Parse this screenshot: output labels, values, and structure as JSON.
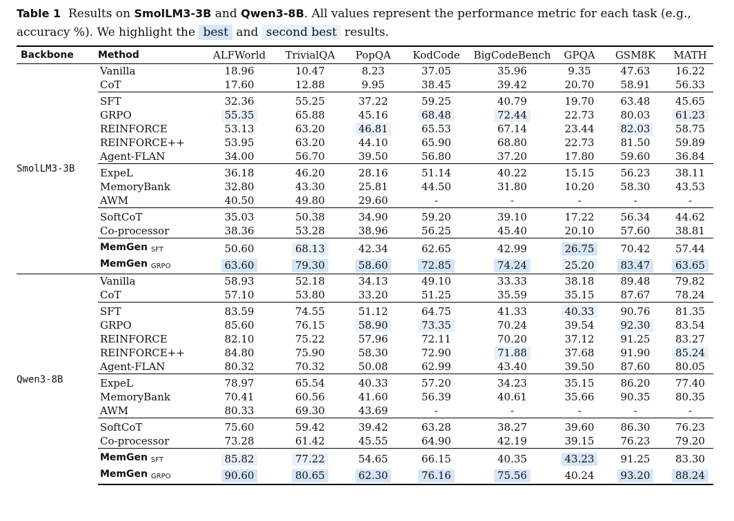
{
  "caption": {
    "label": "Table 1",
    "text_a": "Results on",
    "model_a": "SmolLM3-3B",
    "text_b": "and",
    "model_b": "Qwen3-8B",
    "text_c": ". All values represent the performance metric for each task (e.g., accuracy %). We highlight the",
    "best": "best",
    "text_d": "and",
    "second_best": "second best",
    "text_e": "results."
  },
  "colors": {
    "best": "#d6e6f8",
    "second_best": "#e9f1fb"
  },
  "header": [
    "Backbone",
    "Method",
    "ALFWorld",
    "TrivialQA",
    "PopQA",
    "KodCode",
    "BigCodeBench",
    "GPQA",
    "GSM8K",
    "MATH"
  ],
  "blocks": [
    {
      "backbone": "SmolLM3-3B",
      "groups": [
        {
          "rows": [
            {
              "method": "Vanilla",
              "values": [
                "18.96",
                "10.47",
                "8.23",
                "37.05",
                "35.96",
                "9.35",
                "47.63",
                "16.22"
              ],
              "hl": [
                0,
                0,
                0,
                0,
                0,
                0,
                0,
                0
              ]
            },
            {
              "method": "CoT",
              "values": [
                "17.60",
                "12.88",
                "9.95",
                "38.45",
                "39.42",
                "20.70",
                "58.91",
                "56.33"
              ],
              "hl": [
                0,
                0,
                0,
                0,
                0,
                0,
                0,
                0
              ]
            }
          ]
        },
        {
          "rows": [
            {
              "method": "SFT",
              "values": [
                "32.36",
                "55.25",
                "37.22",
                "59.25",
                "40.79",
                "19.70",
                "63.48",
                "45.65"
              ],
              "hl": [
                0,
                0,
                0,
                0,
                0,
                0,
                0,
                0
              ]
            },
            {
              "method": "GRPO",
              "values": [
                "55.35",
                "65.88",
                "45.16",
                "68.48",
                "72.44",
                "22.73",
                "80.03",
                "61.23"
              ],
              "hl": [
                2,
                0,
                0,
                2,
                2,
                0,
                0,
                2
              ]
            },
            {
              "method": "REINFORCE",
              "values": [
                "53.13",
                "63.20",
                "46.81",
                "65.53",
                "67.14",
                "23.44",
                "82.03",
                "58.75"
              ],
              "hl": [
                0,
                0,
                2,
                0,
                0,
                0,
                2,
                0
              ]
            },
            {
              "method": "REINFORCE++",
              "values": [
                "53.95",
                "63.20",
                "44.10",
                "65.90",
                "68.80",
                "22.73",
                "81.50",
                "59.89"
              ],
              "hl": [
                0,
                0,
                0,
                0,
                0,
                0,
                0,
                0
              ]
            },
            {
              "method": "Agent-FLAN",
              "values": [
                "34.00",
                "56.70",
                "39.50",
                "56.80",
                "37.20",
                "17.80",
                "59.60",
                "36.84"
              ],
              "hl": [
                0,
                0,
                0,
                0,
                0,
                0,
                0,
                0
              ]
            }
          ]
        },
        {
          "rows": [
            {
              "method": "ExpeL",
              "values": [
                "36.18",
                "46.20",
                "28.16",
                "51.14",
                "40.22",
                "15.15",
                "56.23",
                "38.11"
              ],
              "hl": [
                0,
                0,
                0,
                0,
                0,
                0,
                0,
                0
              ]
            },
            {
              "method": "MemoryBank",
              "values": [
                "32.80",
                "43.30",
                "25.81",
                "44.50",
                "31.80",
                "10.20",
                "58.30",
                "43.53"
              ],
              "hl": [
                0,
                0,
                0,
                0,
                0,
                0,
                0,
                0
              ]
            },
            {
              "method": "AWM",
              "values": [
                "40.50",
                "49.80",
                "29.60",
                "-",
                "-",
                "-",
                "-",
                "-"
              ],
              "hl": [
                0,
                0,
                0,
                0,
                0,
                0,
                0,
                0
              ]
            }
          ]
        },
        {
          "rows": [
            {
              "method": "SoftCoT",
              "values": [
                "35.03",
                "50.38",
                "34.90",
                "59.20",
                "39.10",
                "17.22",
                "56.34",
                "44.62"
              ],
              "hl": [
                0,
                0,
                0,
                0,
                0,
                0,
                0,
                0
              ]
            },
            {
              "method": "Co-processor",
              "values": [
                "38.36",
                "53.28",
                "38.96",
                "56.25",
                "45.40",
                "20.10",
                "57.60",
                "38.81"
              ],
              "hl": [
                0,
                0,
                0,
                0,
                0,
                0,
                0,
                0
              ]
            }
          ]
        },
        {
          "rows": [
            {
              "method": "MemGen",
              "sub": "SFT",
              "bold": true,
              "values": [
                "50.60",
                "68.13",
                "42.34",
                "62.65",
                "42.99",
                "26.75",
                "70.42",
                "57.44"
              ],
              "hl": [
                0,
                2,
                0,
                0,
                0,
                1,
                0,
                0
              ]
            },
            {
              "method": "MemGen",
              "sub": "GRPO",
              "bold": true,
              "values": [
                "63.60",
                "79.30",
                "58.60",
                "72.85",
                "74.24",
                "25.20",
                "83.47",
                "63.65"
              ],
              "hl": [
                1,
                1,
                1,
                1,
                1,
                2,
                1,
                1
              ]
            }
          ]
        }
      ]
    },
    {
      "backbone": "Qwen3-8B",
      "groups": [
        {
          "rows": [
            {
              "method": "Vanilla",
              "values": [
                "58.93",
                "52.18",
                "34.13",
                "49.10",
                "33.33",
                "38.18",
                "89.48",
                "79.82"
              ],
              "hl": [
                0,
                0,
                0,
                0,
                0,
                0,
                0,
                0
              ]
            },
            {
              "method": "CoT",
              "values": [
                "57.10",
                "53.80",
                "33.20",
                "51.25",
                "35.59",
                "35.15",
                "87.67",
                "78.24"
              ],
              "hl": [
                0,
                0,
                0,
                0,
                0,
                0,
                0,
                0
              ]
            }
          ]
        },
        {
          "rows": [
            {
              "method": "SFT",
              "values": [
                "83.59",
                "74.55",
                "51.12",
                "64.75",
                "41.33",
                "40.33",
                "90.76",
                "81.35"
              ],
              "hl": [
                0,
                0,
                0,
                0,
                0,
                2,
                0,
                0
              ]
            },
            {
              "method": "GRPO",
              "values": [
                "85.60",
                "76.15",
                "58.90",
                "73.35",
                "70.24",
                "39.54",
                "92.30",
                "83.54"
              ],
              "hl": [
                0,
                0,
                2,
                2,
                0,
                0,
                2,
                0
              ]
            },
            {
              "method": "REINFORCE",
              "values": [
                "82.10",
                "75.22",
                "57.96",
                "72.11",
                "70.20",
                "37.12",
                "91.25",
                "83.27"
              ],
              "hl": [
                0,
                0,
                0,
                0,
                0,
                0,
                0,
                0
              ]
            },
            {
              "method": "REINFORCE++",
              "values": [
                "84.80",
                "75.90",
                "58.30",
                "72.90",
                "71.88",
                "37.68",
                "91.90",
                "85.24"
              ],
              "hl": [
                0,
                0,
                0,
                0,
                2,
                0,
                0,
                2
              ]
            },
            {
              "method": "Agent-FLAN",
              "values": [
                "80.32",
                "70.32",
                "50.08",
                "62.99",
                "43.40",
                "39.50",
                "87.60",
                "80.05"
              ],
              "hl": [
                0,
                0,
                0,
                0,
                0,
                0,
                0,
                0
              ]
            }
          ]
        },
        {
          "rows": [
            {
              "method": "ExpeL",
              "values": [
                "78.97",
                "65.54",
                "40.33",
                "57.20",
                "34.23",
                "35.15",
                "86.20",
                "77.40"
              ],
              "hl": [
                0,
                0,
                0,
                0,
                0,
                0,
                0,
                0
              ]
            },
            {
              "method": "MemoryBank",
              "values": [
                "70.41",
                "60.56",
                "41.60",
                "56.39",
                "40.61",
                "35.66",
                "90.35",
                "80.35"
              ],
              "hl": [
                0,
                0,
                0,
                0,
                0,
                0,
                0,
                0
              ]
            },
            {
              "method": "AWM",
              "values": [
                "80.33",
                "69.30",
                "43.69",
                "-",
                "-",
                "-",
                "-",
                "-"
              ],
              "hl": [
                0,
                0,
                0,
                0,
                0,
                0,
                0,
                0
              ]
            }
          ]
        },
        {
          "rows": [
            {
              "method": "SoftCoT",
              "values": [
                "75.60",
                "59.42",
                "39.42",
                "63.28",
                "38.27",
                "39.60",
                "86.30",
                "76.23"
              ],
              "hl": [
                0,
                0,
                0,
                0,
                0,
                0,
                0,
                0
              ]
            },
            {
              "method": "Co-processor",
              "values": [
                "73.28",
                "61.42",
                "45.55",
                "64.90",
                "42.19",
                "39.15",
                "76.23",
                "79.20"
              ],
              "hl": [
                0,
                0,
                0,
                0,
                0,
                0,
                0,
                0
              ]
            }
          ]
        },
        {
          "rows": [
            {
              "method": "MemGen",
              "sub": "SFT",
              "bold": true,
              "values": [
                "85.82",
                "77.22",
                "54.65",
                "66.15",
                "40.35",
                "43.23",
                "91.25",
                "83.30"
              ],
              "hl": [
                2,
                2,
                0,
                0,
                0,
                1,
                0,
                0
              ]
            },
            {
              "method": "MemGen",
              "sub": "GRPO",
              "bold": true,
              "values": [
                "90.60",
                "80.65",
                "62.30",
                "76.16",
                "75.56",
                "40.24",
                "93.20",
                "88.24"
              ],
              "hl": [
                1,
                1,
                1,
                1,
                1,
                0,
                1,
                1
              ]
            }
          ]
        }
      ]
    }
  ]
}
